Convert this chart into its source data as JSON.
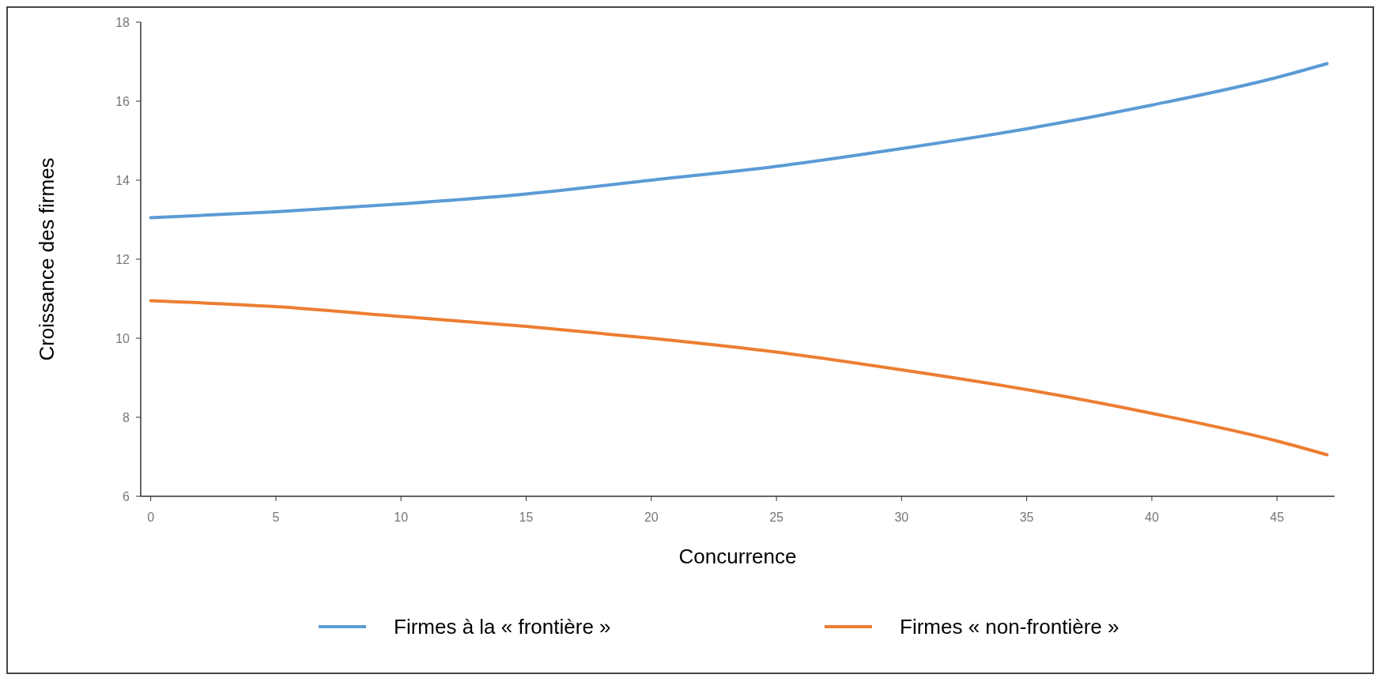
{
  "chart_data": {
    "type": "line",
    "xlabel": "Concurrence",
    "ylabel": "Croissance des firmes",
    "xlim": [
      -0.4,
      47.3
    ],
    "ylim": [
      6,
      18
    ],
    "xticks": [
      0,
      5,
      10,
      15,
      20,
      25,
      30,
      35,
      40,
      45
    ],
    "yticks": [
      6,
      8,
      10,
      12,
      14,
      16,
      18
    ],
    "grid": false,
    "legend": "bottom",
    "marker": "none",
    "line_style": "solid",
    "x": [
      0,
      5,
      10,
      15,
      20,
      25,
      30,
      35,
      40,
      45,
      47
    ],
    "series": [
      {
        "name": "Firmes à la « frontière »",
        "color": "#5b9bd5",
        "values": [
          13.05,
          13.2,
          13.4,
          13.65,
          14.0,
          14.35,
          14.8,
          15.3,
          15.9,
          16.6,
          16.95
        ]
      },
      {
        "name": "Firmes « non-frontière »",
        "color": "#ed7d31",
        "values": [
          10.95,
          10.8,
          10.55,
          10.3,
          10.0,
          9.65,
          9.2,
          8.7,
          8.1,
          7.4,
          7.05
        ]
      }
    ]
  }
}
